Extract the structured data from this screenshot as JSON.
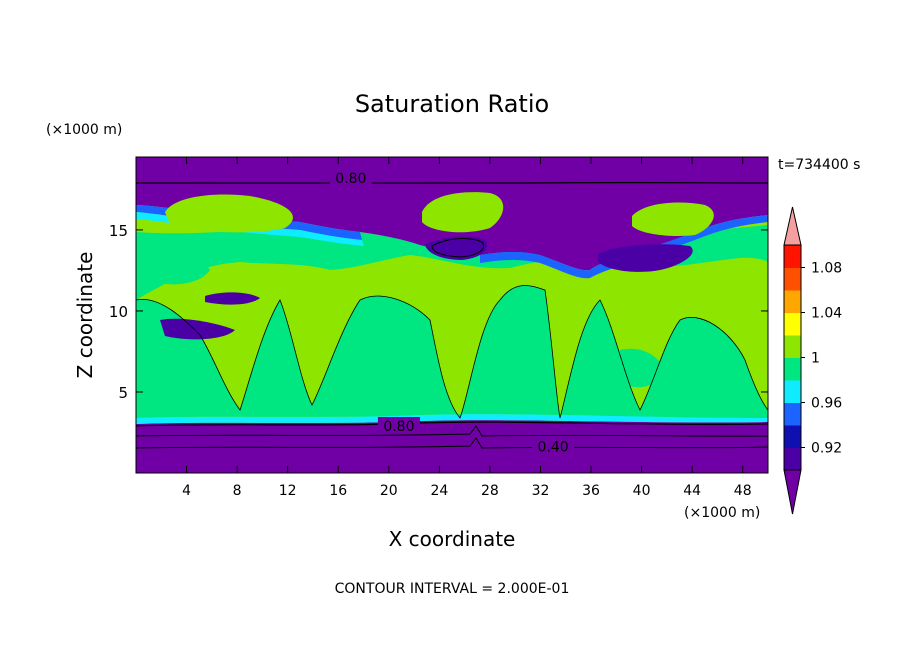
{
  "chart_data": {
    "type": "heatmap",
    "title": "Saturation Ratio",
    "xlabel": "X coordinate",
    "ylabel": "Z coordinate",
    "x_unit": "(×1000 m)",
    "y_unit": "(×1000 m)",
    "time_label": "t=734400 s",
    "footer": "CONTOUR INTERVAL = 2.000E-01",
    "xlim": [
      0,
      50
    ],
    "ylim": [
      0,
      19.5
    ],
    "x_ticks": [
      4,
      8,
      12,
      16,
      20,
      24,
      28,
      32,
      36,
      40,
      44,
      48
    ],
    "x_tick_labels": [
      "4",
      "8",
      "12",
      "16",
      "20",
      "24",
      "28",
      "32",
      "36",
      "40",
      "44",
      "48"
    ],
    "y_ticks": [
      5,
      10,
      15
    ],
    "y_tick_labels": [
      "5",
      "10",
      "15"
    ],
    "contour_labels": [
      {
        "text": "0.80",
        "x": 17,
        "y": 18.2
      },
      {
        "text": "0.80",
        "x": 20.8,
        "y": 2.9
      },
      {
        "text": "0.40",
        "x": 33,
        "y": 1.65
      }
    ],
    "colorbar": {
      "levels": [
        0.9,
        0.92,
        0.94,
        0.96,
        0.98,
        1.0,
        1.02,
        1.04,
        1.06,
        1.08,
        1.1
      ],
      "labels": [
        "0.92",
        "0.96",
        "1",
        "1.04",
        "1.08"
      ],
      "label_levels": [
        0.92,
        0.96,
        1.0,
        1.04,
        1.08
      ],
      "colors": [
        "#4a00a5",
        "#1010b0",
        "#1c64ff",
        "#10ecff",
        "#00e680",
        "#8ee600",
        "#ffff00",
        "#ffa600",
        "#ff5000",
        "#ff1400"
      ],
      "over_color": "#f5a0a0",
      "under_color": "#7000a5"
    }
  }
}
